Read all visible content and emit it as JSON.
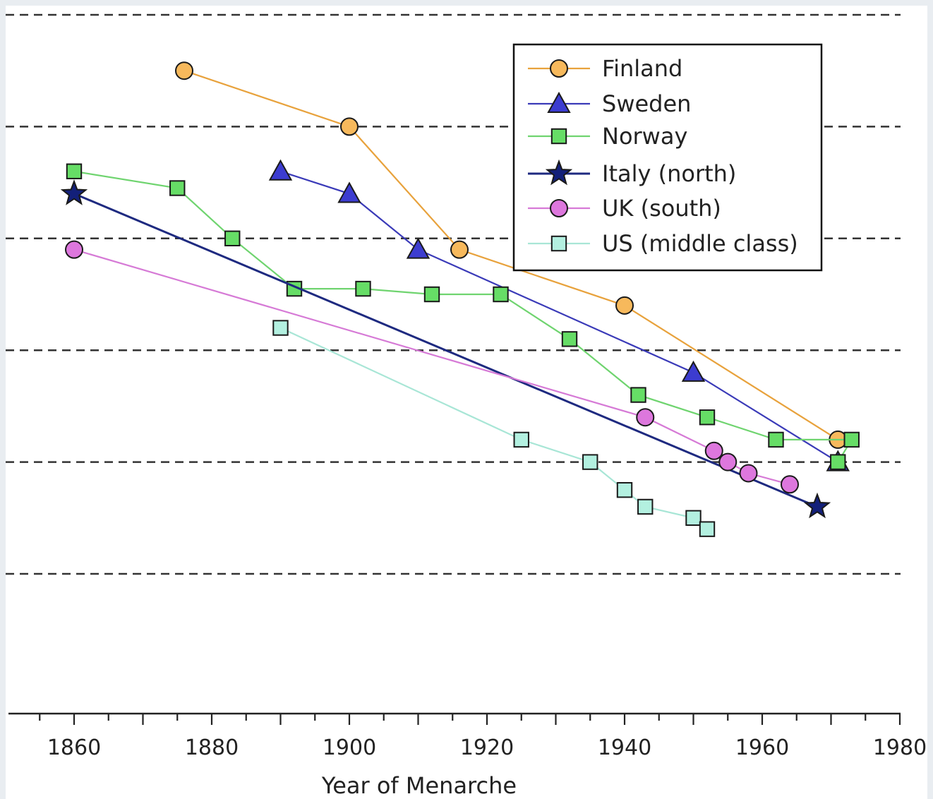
{
  "chart_data": {
    "type": "line",
    "xlabel": "Year of Menarche",
    "ylabel": "",
    "xlim": [
      1850,
      1980
    ],
    "ylim": [
      12,
      18
    ],
    "xticks": [
      1860,
      1880,
      1900,
      1920,
      1940,
      1960,
      1980
    ],
    "xtick_labels": [
      "1860",
      "1880",
      "1900",
      "1920",
      "1940",
      "1960",
      "1980"
    ],
    "y_gridlines": [
      13,
      14,
      15,
      16,
      17,
      18
    ],
    "grid": "horizontal dashed",
    "legend_position": "top-right",
    "series": [
      {
        "name": "Finland",
        "marker": "circle",
        "color": "#e8a23c",
        "fill": "#f7b95c",
        "x": [
          1876,
          1900,
          1916,
          1940,
          1971
        ],
        "y": [
          17.5,
          17.0,
          15.9,
          15.4,
          14.2
        ]
      },
      {
        "name": "Sweden",
        "marker": "triangle",
        "color": "#3a3ab8",
        "fill": "#3c3cd0",
        "x": [
          1890,
          1900,
          1910,
          1950,
          1971
        ],
        "y": [
          16.6,
          16.4,
          15.9,
          14.8,
          14.0
        ]
      },
      {
        "name": "Norway",
        "marker": "square",
        "color": "#6fd46f",
        "fill": "#66dd66",
        "x": [
          1860,
          1875,
          1883,
          1892,
          1902,
          1912,
          1922,
          1932,
          1942,
          1952,
          1962,
          1973,
          1971
        ],
        "y": [
          16.6,
          16.45,
          16.0,
          15.55,
          15.55,
          15.5,
          15.5,
          15.1,
          14.6,
          14.4,
          14.2,
          14.2,
          14.0
        ]
      },
      {
        "name": "Italy (north)",
        "marker": "star",
        "color": "#1e2a80",
        "fill": "#13207a",
        "x": [
          1860,
          1968
        ],
        "y": [
          16.4,
          13.6
        ]
      },
      {
        "name": "UK (south)",
        "marker": "circle",
        "color": "#d67ad6",
        "fill": "#dd77dd",
        "x": [
          1860,
          1943,
          1953,
          1955,
          1958,
          1964
        ],
        "y": [
          15.9,
          14.4,
          14.1,
          14.0,
          13.9,
          13.8
        ]
      },
      {
        "name": "US (middle class)",
        "marker": "square",
        "color": "#a8e6d6",
        "fill": "#b3f0e0",
        "x": [
          1890,
          1925,
          1935,
          1940,
          1943,
          1950,
          1952
        ],
        "y": [
          15.2,
          14.2,
          14.0,
          13.75,
          13.6,
          13.5,
          13.4
        ]
      }
    ]
  }
}
